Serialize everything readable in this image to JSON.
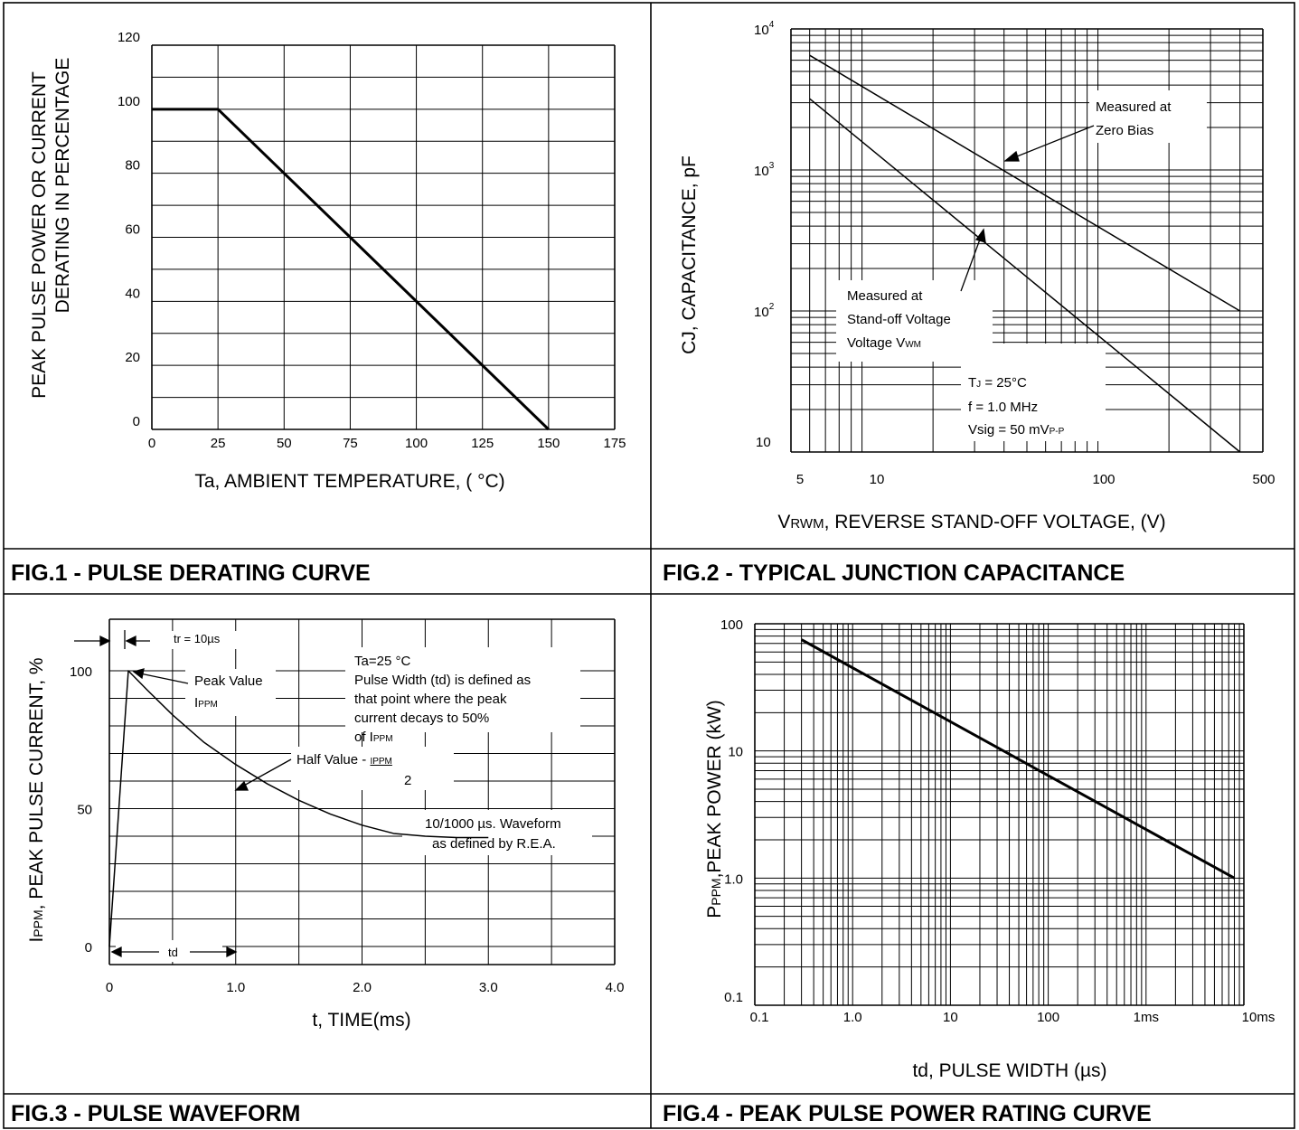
{
  "chart_data": [
    {
      "type": "line",
      "caption": "FIG.1 - PULSE DERATING CURVE",
      "ylabel_lines": [
        "PEAK PULSE POWER OR CURRENT",
        "DERATING IN PERCENTAGE"
      ],
      "xlabel": "Ta, AMBIENT TEMPERATURE, ( °C)",
      "xlim": [
        0,
        175
      ],
      "ylim": [
        0,
        120
      ],
      "xticks": [
        "0",
        "25",
        "50",
        "75",
        "100",
        "125",
        "150",
        "175"
      ],
      "yticks": [
        "0",
        "20",
        "40",
        "60",
        "80",
        "100",
        "120"
      ],
      "grid": true,
      "series": [
        {
          "x": [
            0,
            25,
            150
          ],
          "y": [
            100,
            100,
            0
          ]
        }
      ]
    },
    {
      "type": "line",
      "caption": "FIG.2 - TYPICAL JUNCTION CAPACITANCE",
      "ylabel": "CJ, CAPACITANCE, pF",
      "xlabel_prefix": "V",
      "xlabel_sub": "RWM",
      "xlabel_rest": ", REVERSE STAND-OFF VOLTAGE, (V)",
      "xscale": "log",
      "yscale": "log",
      "xlim": [
        5,
        500
      ],
      "ylim": [
        10,
        10000
      ],
      "xticks": [
        "5",
        "10",
        "100",
        "500"
      ],
      "ytick_base": "10",
      "ytick_exps": [
        "4",
        "3",
        "2"
      ],
      "ytick_plain": "10",
      "grid": true,
      "series": [
        {
          "name": "Measured at Zero Bias",
          "x": [
            6,
            400
          ],
          "y": [
            6500,
            100
          ]
        },
        {
          "name": "Measured at Stand-off Voltage",
          "x": [
            6,
            400
          ],
          "y": [
            3200,
            10
          ]
        }
      ],
      "annotations": {
        "zero_bias": [
          "Measured at",
          "Zero Bias"
        ],
        "standoff": [
          "Measured at",
          "Stand-off Voltage"
        ],
        "standoff3_main": "Voltage V",
        "standoff3_sub": "WM",
        "cond1_main": "T",
        "cond1_sub": "J",
        "cond1_rest": " = 25°C",
        "cond2": "f = 1.0 MHz",
        "cond3_main": "Vsig = 50 mV",
        "cond3_sub": "P-P"
      }
    },
    {
      "type": "line",
      "caption": "FIG.3 - PULSE WAVEFORM",
      "ylabel_main": "I",
      "ylabel_sub": "PPM",
      "ylabel_rest": ", PEAK PULSE CURRENT, %",
      "xlabel": "t, TIME(ms)",
      "xlim": [
        0,
        4.0
      ],
      "ylim": [
        0,
        100
      ],
      "xticks": [
        "0",
        "1.0",
        "2.0",
        "3.0",
        "4.0"
      ],
      "yticks": [
        "0",
        "50",
        "100"
      ],
      "grid": true,
      "series": [
        {
          "x": [
            0,
            0.15,
            0.3,
            0.5,
            0.75,
            1.0,
            1.25,
            1.5,
            1.75,
            2.0,
            2.25,
            2.5,
            2.75,
            3.0
          ],
          "y": [
            0,
            100,
            93,
            84,
            74,
            66,
            59,
            53,
            48,
            44,
            41,
            40,
            39.5,
            39.5
          ]
        }
      ],
      "annotations": {
        "tr": "tr = 10µs",
        "td": "td",
        "note_lines": [
          "Ta=25 °C",
          "Pulse Width (td) is defined as",
          "that point where the peak",
          "current decays to 50%"
        ],
        "note_last_main": "of I",
        "note_last_sub": "PPM",
        "peak_lines": [
          "Peak Value"
        ],
        "peak_main": "I",
        "peak_sub": "PPM",
        "half_main": "Half Value - ",
        "half_num": "IPPM",
        "half_den": "2",
        "waveform_lines": [
          "10/1000 µs. Waveform",
          "as defined by R.E.A."
        ]
      }
    },
    {
      "type": "line",
      "caption": "FIG.4 - PEAK PULSE POWER RATING CURVE",
      "ylabel_main": "P",
      "ylabel_sub": "PPM",
      "ylabel_rest": ",PEAK POWER (kW)",
      "xlabel": "td, PULSE WIDTH (µs)",
      "xscale": "log",
      "yscale": "log",
      "xlim": [
        0.1,
        10000
      ],
      "ylim": [
        0.1,
        100
      ],
      "xticks": [
        "0.1",
        "1.0",
        "10",
        "100",
        "1ms",
        "10ms"
      ],
      "yticks": [
        "0.1",
        "1.0",
        "10",
        "100"
      ],
      "grid": true,
      "series": [
        {
          "x": [
            0.3,
            8000
          ],
          "y": [
            75,
            1.0
          ]
        }
      ]
    }
  ]
}
